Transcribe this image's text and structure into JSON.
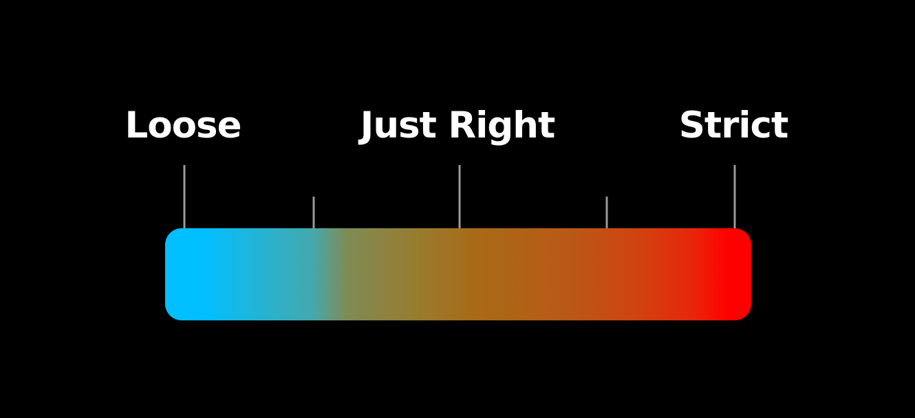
{
  "scale": {
    "labels": {
      "loose": "Loose",
      "just_right": "Just Right",
      "strict": "Strict"
    },
    "gradient_colors": {
      "start": "#00bfff",
      "middle": "#a86a17",
      "end": "#ff0000"
    },
    "tick_color": "#9a9a9a",
    "background": "#000000"
  }
}
